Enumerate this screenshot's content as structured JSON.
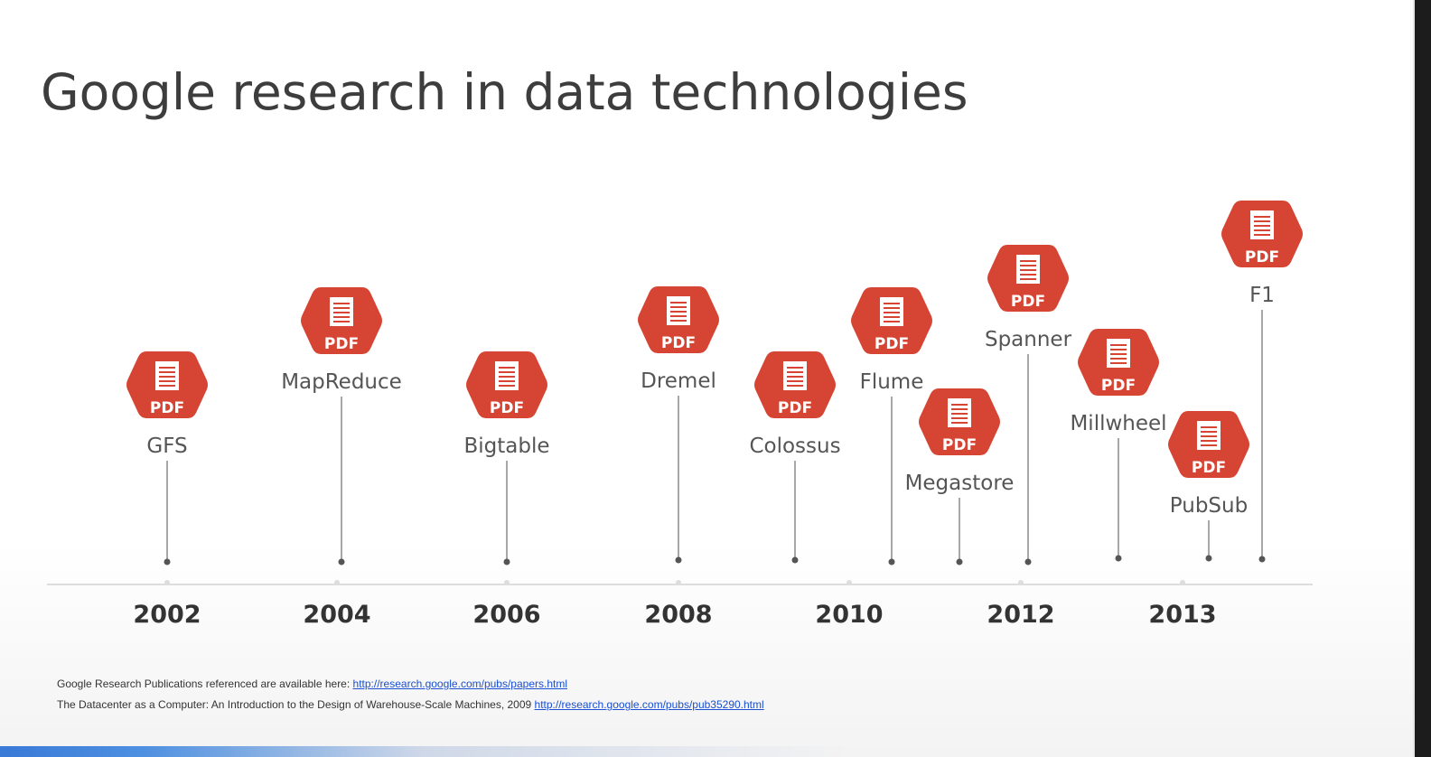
{
  "title": "Google research in data technologies",
  "accent_color": "#d64533",
  "icon": "pdf-document-hexagon-icon",
  "pdf_label": "PDF",
  "years": [
    "2002",
    "2004",
    "2006",
    "2008",
    "2010",
    "2012",
    "2013"
  ],
  "papers": [
    {
      "name": "GFS"
    },
    {
      "name": "MapReduce"
    },
    {
      "name": "Bigtable"
    },
    {
      "name": "Dremel"
    },
    {
      "name": "Colossus"
    },
    {
      "name": "Flume"
    },
    {
      "name": "Megastore"
    },
    {
      "name": "Spanner"
    },
    {
      "name": "Millwheel"
    },
    {
      "name": "PubSub"
    },
    {
      "name": "F1"
    }
  ],
  "footnotes": {
    "line1_text": "Google Research Publications referenced are available here: ",
    "line1_link": "http://research.google.com/pubs/papers.html",
    "line2_text": "The Datacenter as a Computer: An Introduction to the Design of Warehouse-Scale Machines, 2009 ",
    "line2_link": "http://research.google.com/pubs/pub35290.html"
  }
}
